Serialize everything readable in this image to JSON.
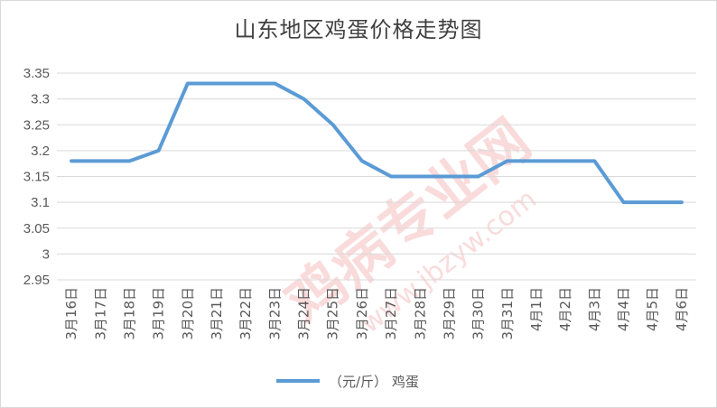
{
  "colors": {
    "series": "#5b9bd5",
    "grid": "#d9d9d9",
    "text": "#595959",
    "title": "#404040",
    "watermark": "#e04040"
  },
  "watermark": {
    "brand": "鸡病专业网",
    "url": "www.jbzyw.com"
  },
  "chart_data": {
    "type": "line",
    "title": "山东地区鸡蛋价格走势图",
    "xlabel": "",
    "ylabel": "",
    "ylim": [
      2.95,
      3.35
    ],
    "yticks": [
      "2.95",
      "3",
      "3.05",
      "3.1",
      "3.15",
      "3.2",
      "3.25",
      "3.3",
      "3.35"
    ],
    "categories": [
      "3月16日",
      "3月17日",
      "3月18日",
      "3月19日",
      "3月20日",
      "3月21日",
      "3月22日",
      "3月23日",
      "3月24日",
      "3月25日",
      "3月26日",
      "3月27日",
      "3月28日",
      "3月29日",
      "3月30日",
      "3月31日",
      "4月1日",
      "4月2日",
      "4月3日",
      "4月4日",
      "4月5日",
      "4月6日"
    ],
    "series": [
      {
        "name": "（元/斤） 鸡蛋",
        "values": [
          3.18,
          3.18,
          3.18,
          3.2,
          3.33,
          3.33,
          3.33,
          3.33,
          3.3,
          3.25,
          3.18,
          3.15,
          3.15,
          3.15,
          3.15,
          3.18,
          3.18,
          3.18,
          3.18,
          3.1,
          3.1,
          3.1
        ]
      }
    ],
    "grid": true,
    "legend": "bottom"
  }
}
